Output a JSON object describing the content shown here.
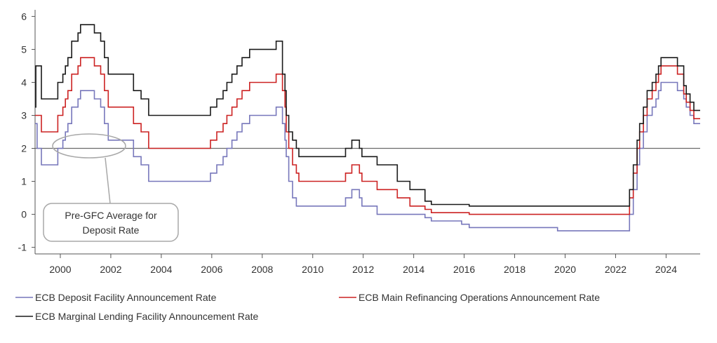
{
  "chart_data": {
    "type": "line",
    "title": "",
    "xlabel": "",
    "ylabel": "",
    "xlim": [
      1999.0,
      2025.35
    ],
    "ylim": [
      -1.2,
      6.2
    ],
    "x_ticks": [
      2000,
      2002,
      2004,
      2006,
      2008,
      2010,
      2012,
      2014,
      2016,
      2018,
      2020,
      2022,
      2024
    ],
    "x_tick_labels": [
      "2000",
      "2002",
      "2004",
      "2006",
      "2008",
      "2010",
      "2012",
      "2014",
      "2016",
      "2018",
      "2020",
      "2022",
      "2024"
    ],
    "y_ticks": [
      -1,
      0,
      1,
      2,
      3,
      4,
      5,
      6
    ],
    "y_tick_labels": [
      "-1",
      "0",
      "1",
      "2",
      "3",
      "4",
      "5",
      "6"
    ],
    "grid": false,
    "legend_position": "bottom",
    "reference_line": {
      "y": 2,
      "color": "#6b6b6b"
    },
    "annotation": {
      "text_lines": [
        "Pre-GFC Average for",
        "Deposit Rate"
      ],
      "circle_center": [
        2001.9,
        2.0
      ]
    },
    "series": [
      {
        "name": "ECB Deposit Facility Announcement Rate",
        "color": "#7777bb",
        "step": true,
        "points": [
          [
            1999.0,
            2.75
          ],
          [
            1999.08,
            2.0
          ],
          [
            1999.25,
            1.5
          ],
          [
            1999.9,
            2.0
          ],
          [
            2000.1,
            2.25
          ],
          [
            2000.2,
            2.5
          ],
          [
            2000.3,
            2.75
          ],
          [
            2000.45,
            3.25
          ],
          [
            2000.7,
            3.5
          ],
          [
            2000.8,
            3.75
          ],
          [
            2001.35,
            3.5
          ],
          [
            2001.6,
            3.25
          ],
          [
            2001.75,
            2.75
          ],
          [
            2001.9,
            2.25
          ],
          [
            2002.9,
            1.75
          ],
          [
            2003.2,
            1.5
          ],
          [
            2003.5,
            1.0
          ],
          [
            2005.95,
            1.25
          ],
          [
            2006.2,
            1.5
          ],
          [
            2006.45,
            1.75
          ],
          [
            2006.6,
            2.0
          ],
          [
            2006.8,
            2.25
          ],
          [
            2007.0,
            2.5
          ],
          [
            2007.2,
            2.75
          ],
          [
            2007.5,
            3.0
          ],
          [
            2008.55,
            3.25
          ],
          [
            2008.8,
            2.75
          ],
          [
            2008.9,
            2.25
          ],
          [
            2008.95,
            1.75
          ],
          [
            2009.05,
            1.0
          ],
          [
            2009.2,
            0.5
          ],
          [
            2009.35,
            0.25
          ],
          [
            2011.3,
            0.5
          ],
          [
            2011.55,
            0.75
          ],
          [
            2011.85,
            0.5
          ],
          [
            2011.95,
            0.25
          ],
          [
            2012.55,
            0.0
          ],
          [
            2014.45,
            -0.1
          ],
          [
            2014.7,
            -0.2
          ],
          [
            2015.9,
            -0.3
          ],
          [
            2016.2,
            -0.4
          ],
          [
            2019.7,
            -0.5
          ],
          [
            2022.55,
            0.0
          ],
          [
            2022.7,
            0.75
          ],
          [
            2022.85,
            1.5
          ],
          [
            2022.95,
            2.0
          ],
          [
            2023.1,
            2.5
          ],
          [
            2023.25,
            3.0
          ],
          [
            2023.45,
            3.25
          ],
          [
            2023.6,
            3.5
          ],
          [
            2023.7,
            3.75
          ],
          [
            2023.8,
            4.0
          ],
          [
            2024.45,
            3.75
          ],
          [
            2024.7,
            3.5
          ],
          [
            2024.8,
            3.25
          ],
          [
            2024.95,
            3.0
          ],
          [
            2025.1,
            2.75
          ],
          [
            2025.35,
            2.75
          ]
        ]
      },
      {
        "name": "ECB Main Refinancing Operations Announcement Rate",
        "color": "#cc2222",
        "step": true,
        "points": [
          [
            1999.0,
            3.0
          ],
          [
            1999.25,
            2.5
          ],
          [
            1999.9,
            3.0
          ],
          [
            2000.1,
            3.25
          ],
          [
            2000.2,
            3.5
          ],
          [
            2000.3,
            3.75
          ],
          [
            2000.45,
            4.25
          ],
          [
            2000.7,
            4.5
          ],
          [
            2000.8,
            4.75
          ],
          [
            2001.35,
            4.5
          ],
          [
            2001.6,
            4.25
          ],
          [
            2001.75,
            3.75
          ],
          [
            2001.9,
            3.25
          ],
          [
            2002.9,
            2.75
          ],
          [
            2003.2,
            2.5
          ],
          [
            2003.5,
            2.0
          ],
          [
            2005.95,
            2.25
          ],
          [
            2006.2,
            2.5
          ],
          [
            2006.45,
            2.75
          ],
          [
            2006.6,
            3.0
          ],
          [
            2006.8,
            3.25
          ],
          [
            2007.0,
            3.5
          ],
          [
            2007.2,
            3.75
          ],
          [
            2007.5,
            4.0
          ],
          [
            2008.55,
            4.25
          ],
          [
            2008.8,
            3.75
          ],
          [
            2008.9,
            3.25
          ],
          [
            2008.95,
            2.5
          ],
          [
            2009.05,
            2.0
          ],
          [
            2009.2,
            1.5
          ],
          [
            2009.35,
            1.25
          ],
          [
            2009.45,
            1.0
          ],
          [
            2011.3,
            1.25
          ],
          [
            2011.55,
            1.5
          ],
          [
            2011.85,
            1.25
          ],
          [
            2011.95,
            1.0
          ],
          [
            2012.55,
            0.75
          ],
          [
            2013.35,
            0.5
          ],
          [
            2013.85,
            0.25
          ],
          [
            2014.45,
            0.15
          ],
          [
            2014.7,
            0.05
          ],
          [
            2016.2,
            0.0
          ],
          [
            2022.55,
            0.5
          ],
          [
            2022.7,
            1.25
          ],
          [
            2022.85,
            2.0
          ],
          [
            2022.95,
            2.5
          ],
          [
            2023.1,
            3.0
          ],
          [
            2023.25,
            3.5
          ],
          [
            2023.45,
            3.75
          ],
          [
            2023.6,
            4.0
          ],
          [
            2023.7,
            4.25
          ],
          [
            2023.8,
            4.5
          ],
          [
            2024.45,
            4.25
          ],
          [
            2024.7,
            3.65
          ],
          [
            2024.8,
            3.4
          ],
          [
            2024.95,
            3.15
          ],
          [
            2025.1,
            2.9
          ],
          [
            2025.35,
            2.9
          ]
        ]
      },
      {
        "name": "ECB Marginal Lending Facility Announcement Rate",
        "color": "#1a1a1a",
        "step": true,
        "points": [
          [
            1999.0,
            3.25
          ],
          [
            1999.03,
            4.5
          ],
          [
            1999.25,
            3.5
          ],
          [
            1999.9,
            4.0
          ],
          [
            2000.1,
            4.25
          ],
          [
            2000.2,
            4.5
          ],
          [
            2000.3,
            4.75
          ],
          [
            2000.45,
            5.25
          ],
          [
            2000.7,
            5.5
          ],
          [
            2000.8,
            5.75
          ],
          [
            2001.35,
            5.5
          ],
          [
            2001.6,
            5.25
          ],
          [
            2001.75,
            4.75
          ],
          [
            2001.9,
            4.25
          ],
          [
            2002.9,
            3.75
          ],
          [
            2003.2,
            3.5
          ],
          [
            2003.5,
            3.0
          ],
          [
            2005.95,
            3.25
          ],
          [
            2006.2,
            3.5
          ],
          [
            2006.45,
            3.75
          ],
          [
            2006.6,
            4.0
          ],
          [
            2006.8,
            4.25
          ],
          [
            2007.0,
            4.5
          ],
          [
            2007.2,
            4.75
          ],
          [
            2007.5,
            5.0
          ],
          [
            2008.55,
            5.25
          ],
          [
            2008.8,
            4.25
          ],
          [
            2008.9,
            3.75
          ],
          [
            2008.95,
            3.0
          ],
          [
            2009.05,
            2.5
          ],
          [
            2009.2,
            2.25
          ],
          [
            2009.35,
            2.0
          ],
          [
            2009.45,
            1.75
          ],
          [
            2011.3,
            2.0
          ],
          [
            2011.55,
            2.25
          ],
          [
            2011.85,
            2.0
          ],
          [
            2011.95,
            1.75
          ],
          [
            2012.55,
            1.5
          ],
          [
            2013.35,
            1.0
          ],
          [
            2013.85,
            0.75
          ],
          [
            2014.45,
            0.4
          ],
          [
            2014.7,
            0.3
          ],
          [
            2016.2,
            0.25
          ],
          [
            2022.55,
            0.75
          ],
          [
            2022.7,
            1.5
          ],
          [
            2022.85,
            2.25
          ],
          [
            2022.95,
            2.75
          ],
          [
            2023.1,
            3.25
          ],
          [
            2023.25,
            3.75
          ],
          [
            2023.45,
            4.0
          ],
          [
            2023.6,
            4.25
          ],
          [
            2023.7,
            4.5
          ],
          [
            2023.8,
            4.75
          ],
          [
            2024.45,
            4.5
          ],
          [
            2024.7,
            3.9
          ],
          [
            2024.8,
            3.65
          ],
          [
            2024.95,
            3.4
          ],
          [
            2025.1,
            3.15
          ],
          [
            2025.35,
            3.15
          ]
        ]
      }
    ]
  }
}
